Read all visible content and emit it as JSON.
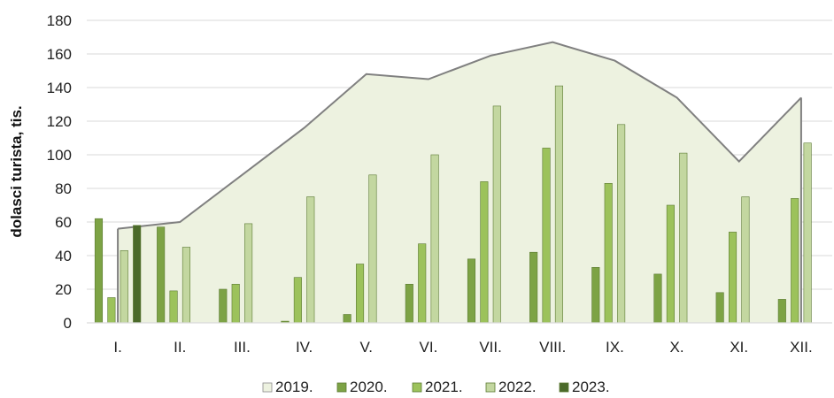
{
  "chart_data": {
    "type": "bar",
    "title": "",
    "xlabel": "",
    "ylabel": "dolasci turista, tis.",
    "ylim": [
      0,
      180
    ],
    "yticks": [
      0,
      20,
      40,
      60,
      80,
      100,
      120,
      140,
      160,
      180
    ],
    "grid": true,
    "legend_position": "bottom",
    "categories": [
      "I.",
      "II.",
      "III.",
      "IV.",
      "V.",
      "VI.",
      "VII.",
      "VIII.",
      "IX.",
      "X.",
      "XI.",
      "XII."
    ],
    "series": [
      {
        "name": "2019.",
        "render": "area",
        "color": "#edf2e0",
        "stroke": "#808080",
        "values": [
          56,
          60,
          88,
          116,
          148,
          145,
          159,
          167,
          156,
          134,
          96,
          134
        ]
      },
      {
        "name": "2020.",
        "render": "bar",
        "color": "#7da345",
        "values": [
          62,
          57,
          20,
          1,
          5,
          23,
          38,
          42,
          33,
          29,
          18,
          14
        ]
      },
      {
        "name": "2021.",
        "render": "bar",
        "color": "#9cc25b",
        "values": [
          15,
          19,
          23,
          27,
          35,
          47,
          84,
          104,
          83,
          70,
          54,
          74
        ]
      },
      {
        "name": "2022.",
        "render": "bar",
        "color": "#c3d7a0",
        "values": [
          43,
          45,
          59,
          75,
          88,
          100,
          129,
          141,
          118,
          101,
          75,
          107
        ]
      },
      {
        "name": "2023.",
        "render": "bar",
        "color": "#4b6a2a",
        "values": [
          58,
          null,
          null,
          null,
          null,
          null,
          null,
          null,
          null,
          null,
          null,
          null
        ]
      }
    ]
  }
}
